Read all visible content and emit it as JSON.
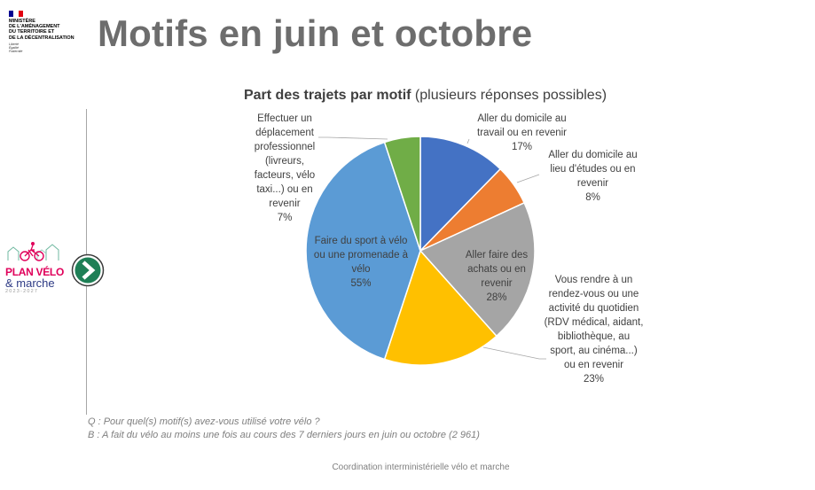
{
  "branding": {
    "ministry_lines": [
      "MINISTÈRE",
      "DE L'AMÉNAGEMENT",
      "DU TERRITOIRE ET",
      "DE LA DÉCENTRALISATION"
    ],
    "motto_lines": [
      "Liberté",
      "Égalité",
      "Fraternité"
    ],
    "flag_colors": [
      "#000091",
      "#ffffff",
      "#e1000f"
    ],
    "program_logo": {
      "line1": "PLAN VÉLO",
      "line2": "& marche",
      "line3": "2023-2027",
      "color_primary": "#e0005a",
      "color_secondary": "#2d3a84"
    },
    "nav_button": {
      "icon": "chevron-right-icon",
      "color": "#1e7f56"
    }
  },
  "page": {
    "title": "Motifs en juin et octobre"
  },
  "chart_data": {
    "type": "pie",
    "title_bold": "Part des trajets par motif",
    "title_rest": " (plusieurs réponses possibles)",
    "start_angle_deg": 0,
    "direction": "clockwise",
    "slices": [
      {
        "label_lines": [
          "Aller du domicile au",
          "travail ou en revenir"
        ],
        "value": 17,
        "value_label": "17%",
        "color": "#4472c4"
      },
      {
        "label_lines": [
          "Aller du domicile au",
          "lieu d'études ou en",
          "revenir"
        ],
        "value": 8,
        "value_label": "8%",
        "color": "#ed7d31"
      },
      {
        "label_lines": [
          "Aller faire des",
          "achats ou en",
          "revenir"
        ],
        "value": 28,
        "value_label": "28%",
        "color": "#a5a5a5"
      },
      {
        "label_lines": [
          "Vous rendre à un",
          "rendez-vous ou une",
          "activité du quotidien",
          "(RDV médical, aidant,",
          "bibliothèque, au",
          "sport, au cinéma...)",
          "ou en revenir"
        ],
        "value": 23,
        "value_label": "23%",
        "color": "#ffc000"
      },
      {
        "label_lines": [
          "Faire du sport à vélo",
          "ou une promenade à",
          "vélo"
        ],
        "value": 55,
        "value_label": "55%",
        "color": "#5b9bd5"
      },
      {
        "label_lines": [
          "Effectuer un",
          "déplacement",
          "professionnel",
          "(livreurs,",
          "facteurs, vélo",
          "taxi...) ou en",
          "revenir"
        ],
        "value": 7,
        "value_label": "7%",
        "color": "#70ad47"
      }
    ]
  },
  "notes": {
    "question": "Q : Pour quel(s) motif(s) avez-vous utilisé votre vélo ?",
    "base": "B : A fait du vélo au moins une fois au cours des 7 derniers jours en juin ou octobre (2 961)"
  },
  "footer": {
    "text": "Coordination interministérielle vélo et marche"
  }
}
